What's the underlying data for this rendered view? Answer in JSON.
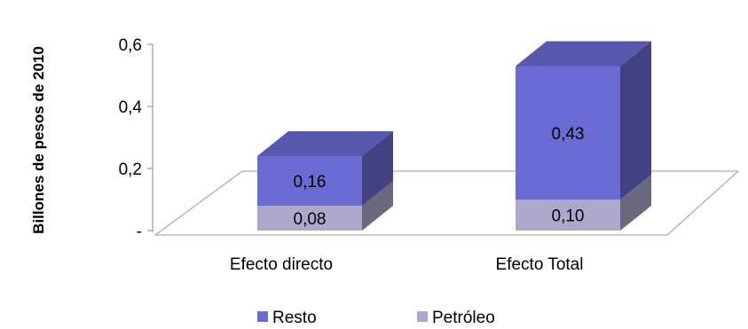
{
  "chart_data": {
    "type": "bar",
    "stacked": true,
    "style": "3d",
    "categories": [
      "Efecto directo",
      "Efecto Total"
    ],
    "series": [
      {
        "name": "Petróleo",
        "values": [
          0.08,
          0.1
        ],
        "labels": [
          "0,08",
          "0,10"
        ],
        "color": "#aaa9cc"
      },
      {
        "name": "Resto",
        "values": [
          0.16,
          0.43
        ],
        "labels": [
          "0,16",
          "0,43"
        ],
        "color": "#6b6bd4"
      }
    ],
    "ylabel": "Billones de pesos de 2010",
    "ylim": [
      0,
      0.6
    ],
    "yticks": [
      {
        "value": 0,
        "label": "-"
      },
      {
        "value": 0.2,
        "label": "0,2"
      },
      {
        "value": 0.4,
        "label": "0,4"
      },
      {
        "value": 0.6,
        "label": "0,6"
      }
    ],
    "legend": {
      "position": "bottom",
      "entries": [
        {
          "name": "Resto",
          "color": "#6b6bd4"
        },
        {
          "name": "Petróleo",
          "color": "#aaa9cc"
        }
      ]
    },
    "grid": false
  }
}
